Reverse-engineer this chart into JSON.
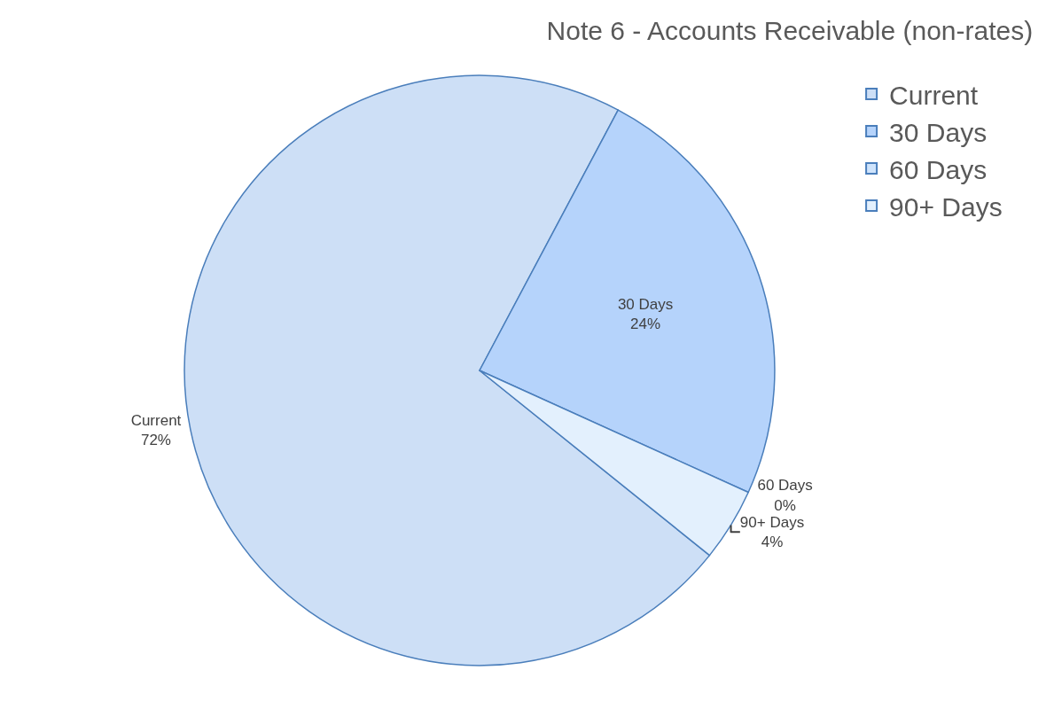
{
  "chart_data": {
    "type": "pie",
    "title": "Note 6 - Accounts Receivable (non-rates)",
    "categories": [
      "Current",
      "30 Days",
      "60 Days",
      "90+ Days"
    ],
    "values": [
      72,
      24,
      0,
      4
    ],
    "colors": [
      "#cddff6",
      "#b5d3fb",
      "#cfe4fc",
      "#e3f0fd"
    ],
    "value_labels": [
      "72%",
      "24%",
      "0%",
      "4%"
    ],
    "legend": "top right"
  }
}
